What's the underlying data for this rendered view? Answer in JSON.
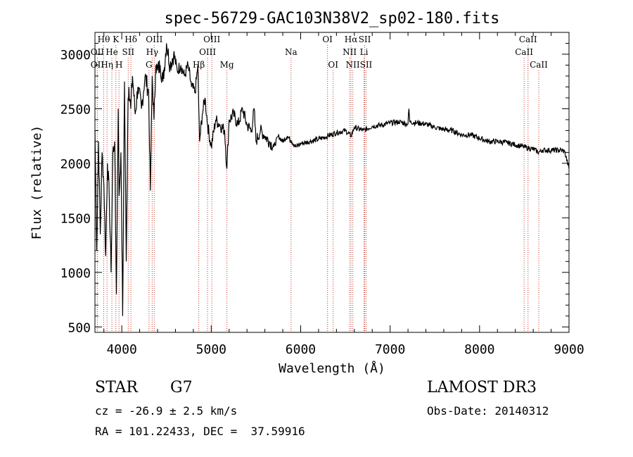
{
  "chart_data": {
    "type": "line",
    "title": "spec-56729-GAC103N38V2_sp02-180.fits",
    "xlabel": "Wavelength (Å)",
    "ylabel": "Flux (relative)",
    "xlim": [
      3700,
      9000
    ],
    "ylim": [
      450,
      3200
    ],
    "x_ticks": [
      4000,
      5000,
      6000,
      7000,
      8000,
      9000
    ],
    "y_ticks": [
      500,
      1000,
      1500,
      2000,
      2500,
      3000
    ],
    "spectrum": {
      "name": "flux",
      "x": [
        3700,
        3720,
        3740,
        3760,
        3780,
        3800,
        3820,
        3840,
        3860,
        3880,
        3900,
        3920,
        3940,
        3960,
        3970,
        3990,
        4010,
        4030,
        4050,
        4070,
        4080,
        4100,
        4120,
        4150,
        4180,
        4220,
        4260,
        4300,
        4320,
        4340,
        4360,
        4380,
        4400,
        4430,
        4460,
        4500,
        4540,
        4580,
        4620,
        4660,
        4700,
        4740,
        4780,
        4820,
        4850,
        4861,
        4870,
        4900,
        4930,
        4960,
        5000,
        5050,
        5100,
        5150,
        5175,
        5200,
        5250,
        5300,
        5350,
        5400,
        5450,
        5480,
        5500,
        5550,
        5600,
        5650,
        5700,
        5750,
        5800,
        5850,
        5900,
        5950,
        6000,
        6100,
        6200,
        6300,
        6400,
        6500,
        6563,
        6600,
        6700,
        6800,
        6900,
        7000,
        7100,
        7200,
        7210,
        7220,
        7300,
        7400,
        7500,
        7600,
        7700,
        7800,
        7900,
        8000,
        8100,
        8200,
        8300,
        8400,
        8500,
        8542,
        8600,
        8662,
        8700,
        8800,
        8900,
        8950,
        9000
      ],
      "y": [
        2300,
        1200,
        2200,
        1350,
        2100,
        1800,
        1150,
        2000,
        1700,
        1000,
        2100,
        2200,
        800,
        2500,
        1700,
        2100,
        600,
        2750,
        1100,
        2600,
        2700,
        2500,
        2800,
        2450,
        2700,
        2500,
        2800,
        2650,
        1750,
        2800,
        2400,
        2900,
        2850,
        2900,
        2750,
        3100,
        2900,
        3000,
        2850,
        2900,
        2800,
        2900,
        2700,
        2650,
        2900,
        2500,
        2200,
        2450,
        2600,
        2350,
        2150,
        2400,
        2350,
        2300,
        1950,
        2400,
        2450,
        2350,
        2500,
        2350,
        2300,
        2500,
        2200,
        2300,
        2250,
        2200,
        2150,
        2250,
        2200,
        2250,
        2200,
        2150,
        2180,
        2200,
        2220,
        2250,
        2280,
        2300,
        2250,
        2330,
        2300,
        2340,
        2350,
        2370,
        2380,
        2360,
        2500,
        2380,
        2370,
        2360,
        2330,
        2310,
        2300,
        2260,
        2260,
        2230,
        2200,
        2200,
        2190,
        2170,
        2150,
        2140,
        2130,
        2100,
        2120,
        2120,
        2120,
        2110,
        1950
      ]
    },
    "lines": [
      {
        "label": "Hθ",
        "x": 3798,
        "row": 0
      },
      {
        "label": "OII",
        "x": 3727,
        "row": 1
      },
      {
        "label": "OII",
        "x": 3727,
        "row": 2
      },
      {
        "label": "He",
        "x": 3889,
        "row": 1
      },
      {
        "label": "Hη",
        "x": 3835,
        "row": 2
      },
      {
        "label": "K",
        "x": 3934,
        "row": 0
      },
      {
        "label": "SII",
        "x": 4072,
        "row": 1
      },
      {
        "label": "H",
        "x": 3969,
        "row": 2
      },
      {
        "label": "Hδ",
        "x": 4102,
        "row": 0
      },
      {
        "label": "OIII",
        "x": 4363,
        "row": 0
      },
      {
        "label": "Hγ",
        "x": 4340,
        "row": 1
      },
      {
        "label": "G",
        "x": 4304,
        "row": 2
      },
      {
        "label": "Hβ",
        "x": 4861,
        "row": 2
      },
      {
        "label": "OIII",
        "x": 5007,
        "row": 0
      },
      {
        "label": "OIII",
        "x": 4959,
        "row": 1
      },
      {
        "label": "Mg",
        "x": 5175,
        "row": 2
      },
      {
        "label": "Na",
        "x": 5893,
        "row": 1
      },
      {
        "label": "OI",
        "x": 6300,
        "row": 0
      },
      {
        "label": "OI",
        "x": 6363,
        "row": 2
      },
      {
        "label": "Hα",
        "x": 6563,
        "row": 0
      },
      {
        "label": "NII",
        "x": 6548,
        "row": 1
      },
      {
        "label": "NII",
        "x": 6583,
        "row": 2
      },
      {
        "label": "SII",
        "x": 6716,
        "row": 0
      },
      {
        "label": "Li",
        "x": 6708,
        "row": 1
      },
      {
        "label": "SII",
        "x": 6731,
        "row": 2
      },
      {
        "label": "CaII",
        "x": 8542,
        "row": 0
      },
      {
        "label": "CaII",
        "x": 8498,
        "row": 1
      },
      {
        "label": "CaII",
        "x": 8662,
        "row": 2
      }
    ]
  },
  "info": {
    "class": "STAR",
    "subclass": "G7",
    "cz": "cz = -26.9 ± 2.5 km/s",
    "coords": "RA = 101.22433, DEC =  37.59916",
    "survey": "LAMOST DR3",
    "obs_date": "Obs-Date: 20140312"
  }
}
